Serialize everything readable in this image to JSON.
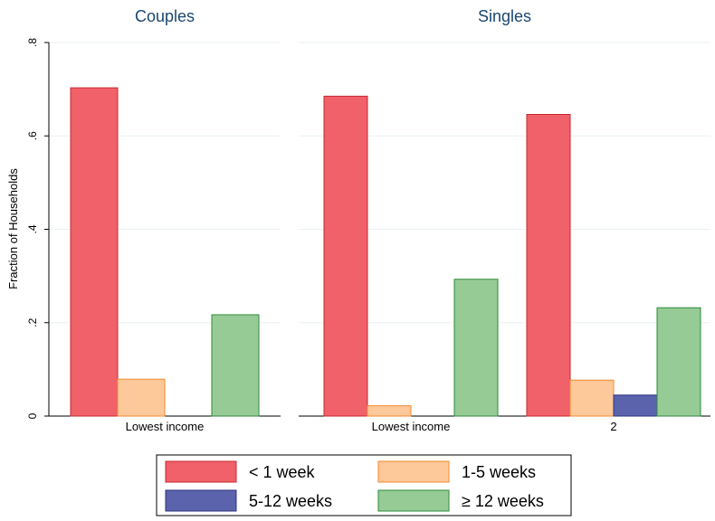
{
  "chart_data": {
    "type": "bar",
    "ylabel": "Fraction of Households",
    "ylim": [
      0,
      0.8
    ],
    "yticks": [
      {
        "value": 0,
        "label": "0"
      },
      {
        "value": 0.2,
        "label": ".2"
      },
      {
        "value": 0.4,
        "label": ".4"
      },
      {
        "value": 0.6,
        "label": ".6"
      },
      {
        "value": 0.8,
        "label": ".8"
      }
    ],
    "grid": true,
    "legend_position": "bottom",
    "series": [
      {
        "name": "< 1 week",
        "color": "#f0616a",
        "stroke": "#c8282f"
      },
      {
        "name": "1-5 weeks",
        "color": "#fdc89a",
        "stroke": "#f28b2f"
      },
      {
        "name": "5-12 weeks",
        "color": "#5b63ad",
        "stroke": "#2d3580"
      },
      {
        "name": "≥ 12 weeks",
        "color": "#96cb96",
        "stroke": "#2f8a3a"
      }
    ],
    "panels": [
      {
        "title": "Couples",
        "groups": [
          {
            "label": "Lowest income",
            "values": [
              0.703,
              0.079,
              0,
              0.217
            ]
          }
        ]
      },
      {
        "title": "Singles",
        "groups": [
          {
            "label": "Lowest income",
            "values": [
              0.685,
              0.022,
              0,
              0.293
            ]
          },
          {
            "label": "2",
            "values": [
              0.646,
              0.077,
              0.045,
              0.232
            ]
          }
        ]
      }
    ]
  }
}
